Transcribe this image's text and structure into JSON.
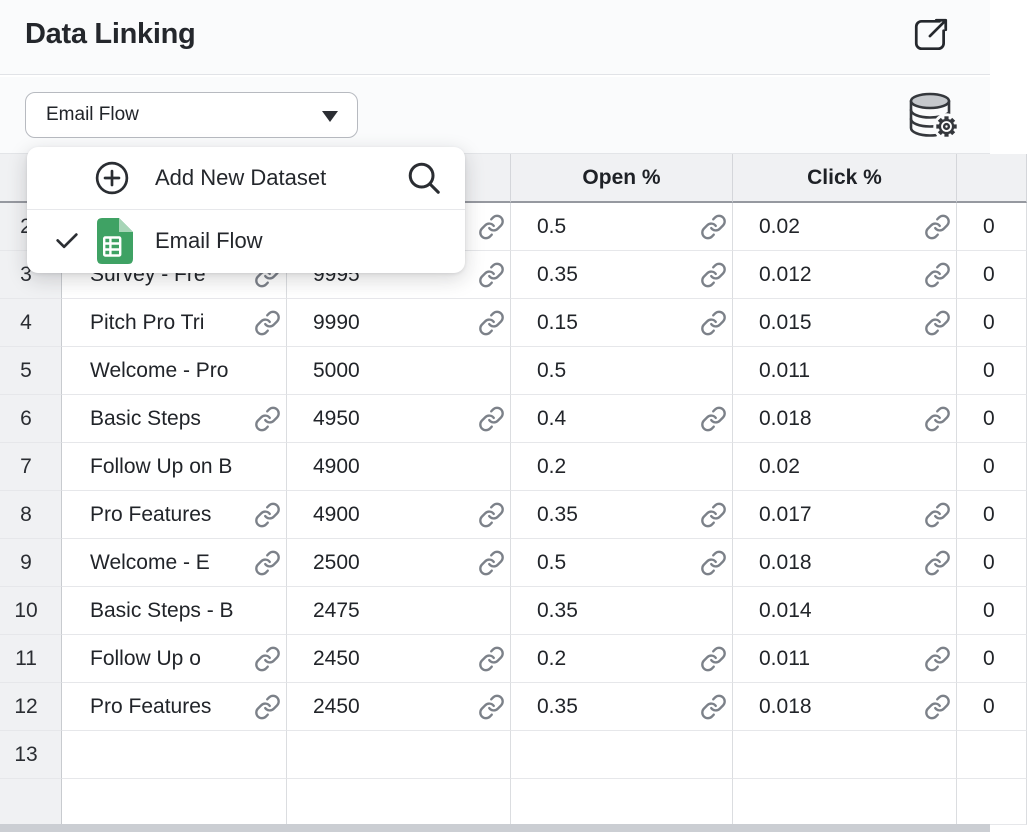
{
  "header": {
    "title": "Data Linking",
    "open_icon": "external-link-icon"
  },
  "toolbar": {
    "dataset_select": {
      "value": "Email Flow",
      "caret_icon": "chevron-down-icon"
    },
    "manage_icon": "database-gear-icon"
  },
  "dataset_menu": {
    "items": [
      {
        "label": "Add New Dataset",
        "left_icon": "plus-circle-icon",
        "right_icon": "search-icon",
        "selected": false
      },
      {
        "label": "Email Flow",
        "left_icon": "check-icon",
        "type_icon": "spreadsheet-icon",
        "selected": true
      }
    ]
  },
  "table": {
    "header_labels": {
      "num": "",
      "name": "",
      "count": "",
      "open": "Open %",
      "click": "Click %",
      "extra": ""
    },
    "rows": [
      {
        "num": "2",
        "name": "",
        "name_link": false,
        "count": "",
        "count_link": true,
        "open": "0.5",
        "open_link": true,
        "click": "0.02",
        "click_link": true,
        "extra": "0"
      },
      {
        "num": "3",
        "name": "Survey - Fre",
        "name_link": true,
        "count": "9995",
        "count_link": true,
        "open": "0.35",
        "open_link": true,
        "click": "0.012",
        "click_link": true,
        "extra": "0"
      },
      {
        "num": "4",
        "name": "Pitch Pro Tri",
        "name_link": true,
        "count": "9990",
        "count_link": true,
        "open": "0.15",
        "open_link": true,
        "click": "0.015",
        "click_link": true,
        "extra": "0"
      },
      {
        "num": "5",
        "name": "Welcome - Pro",
        "name_link": false,
        "count": "5000",
        "count_link": false,
        "open": "0.5",
        "open_link": false,
        "click": "0.011",
        "click_link": false,
        "extra": "0"
      },
      {
        "num": "6",
        "name": "Basic Steps",
        "name_link": true,
        "count": "4950",
        "count_link": true,
        "open": "0.4",
        "open_link": true,
        "click": "0.018",
        "click_link": true,
        "extra": "0"
      },
      {
        "num": "7",
        "name": "Follow Up on B",
        "name_link": false,
        "count": "4900",
        "count_link": false,
        "open": "0.2",
        "open_link": false,
        "click": "0.02",
        "click_link": false,
        "extra": "0"
      },
      {
        "num": "8",
        "name": "Pro Features",
        "name_link": true,
        "count": "4900",
        "count_link": true,
        "open": "0.35",
        "open_link": true,
        "click": "0.017",
        "click_link": true,
        "extra": "0"
      },
      {
        "num": "9",
        "name": "Welcome - E",
        "name_link": true,
        "count": "2500",
        "count_link": true,
        "open": "0.5",
        "open_link": true,
        "click": "0.018",
        "click_link": true,
        "extra": "0"
      },
      {
        "num": "10",
        "name": "Basic Steps - B",
        "name_link": false,
        "count": "2475",
        "count_link": false,
        "open": "0.35",
        "open_link": false,
        "click": "0.014",
        "click_link": false,
        "extra": "0"
      },
      {
        "num": "11",
        "name": "Follow Up o",
        "name_link": true,
        "count": "2450",
        "count_link": true,
        "open": "0.2",
        "open_link": true,
        "click": "0.011",
        "click_link": true,
        "extra": "0"
      },
      {
        "num": "12",
        "name": "Pro Features",
        "name_link": true,
        "count": "2450",
        "count_link": true,
        "open": "0.35",
        "open_link": true,
        "click": "0.018",
        "click_link": true,
        "extra": "0"
      },
      {
        "num": "13",
        "name": "",
        "name_link": false,
        "count": "",
        "count_link": false,
        "open": "",
        "open_link": false,
        "click": "",
        "click_link": false,
        "extra": ""
      },
      {
        "num": "",
        "name": "",
        "name_link": false,
        "count": "",
        "count_link": false,
        "open": "",
        "open_link": false,
        "click": "",
        "click_link": false,
        "extra": "",
        "partial": true
      }
    ]
  },
  "colors": {
    "accent_green": "#3fa264",
    "green_fold": "#a7d5b7",
    "link_gray": "#7c8189",
    "header_bg": "#f0f1f3",
    "panel_bg": "#fafbfc",
    "strip_gray": "#cbced3",
    "text": "#212429"
  }
}
